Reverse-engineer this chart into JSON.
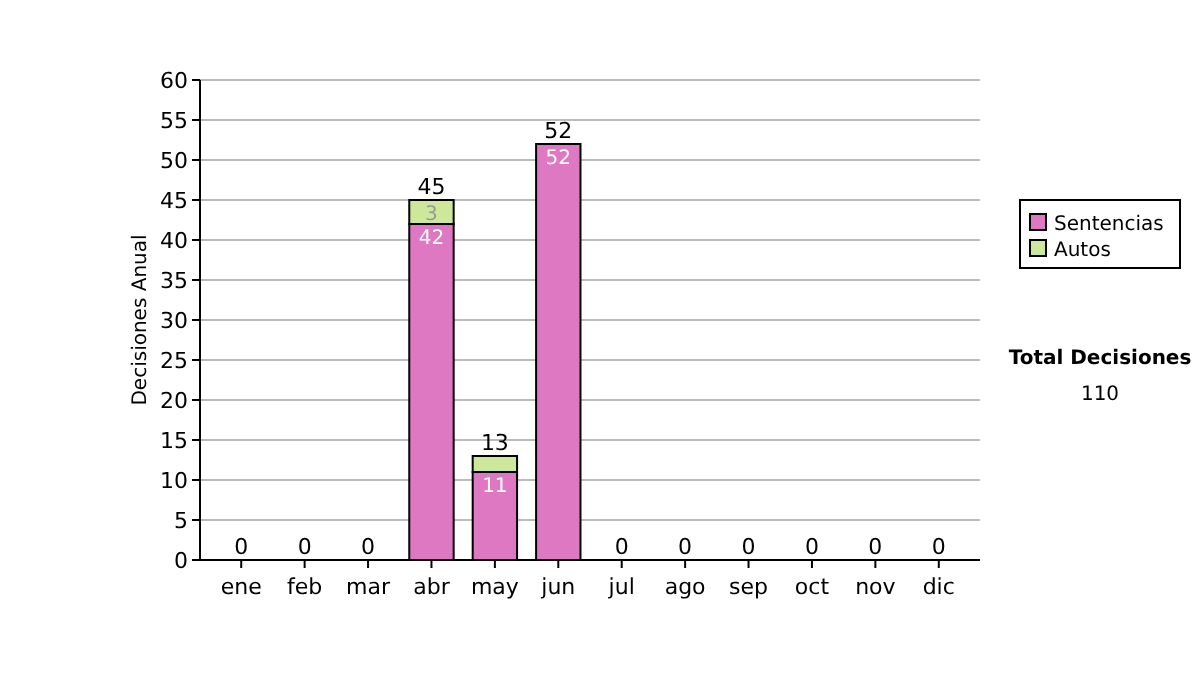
{
  "chart_data": {
    "type": "bar",
    "stacked": true,
    "ylabel": "Decisiones Anual",
    "categories": [
      "ene",
      "feb",
      "mar",
      "abr",
      "may",
      "jun",
      "jul",
      "ago",
      "sep",
      "oct",
      "nov",
      "dic"
    ],
    "series": [
      {
        "name": "Sentencias",
        "color": "#de78c2",
        "values": [
          0,
          0,
          0,
          42,
          11,
          52,
          0,
          0,
          0,
          0,
          0,
          0
        ],
        "value_labels": [
          null,
          null,
          null,
          "42",
          "11",
          "52",
          null,
          null,
          null,
          null,
          null,
          null
        ]
      },
      {
        "name": "Autos",
        "color": "#cde89a",
        "values": [
          0,
          0,
          0,
          3,
          2,
          0,
          0,
          0,
          0,
          0,
          0,
          0
        ],
        "value_labels": [
          null,
          null,
          null,
          "3",
          null,
          null,
          null,
          null,
          null,
          null,
          null,
          null
        ]
      }
    ],
    "totals": [
      "0",
      "0",
      "0",
      "45",
      "13",
      "52",
      "0",
      "0",
      "0",
      "0",
      "0",
      "0"
    ],
    "ylim": [
      0,
      60
    ],
    "yticks": [
      0,
      5,
      10,
      15,
      20,
      25,
      30,
      35,
      40,
      45,
      50,
      55,
      60
    ],
    "grid": "y",
    "legend": "right",
    "annotations": [
      "Total Decisiones",
      "110"
    ]
  }
}
